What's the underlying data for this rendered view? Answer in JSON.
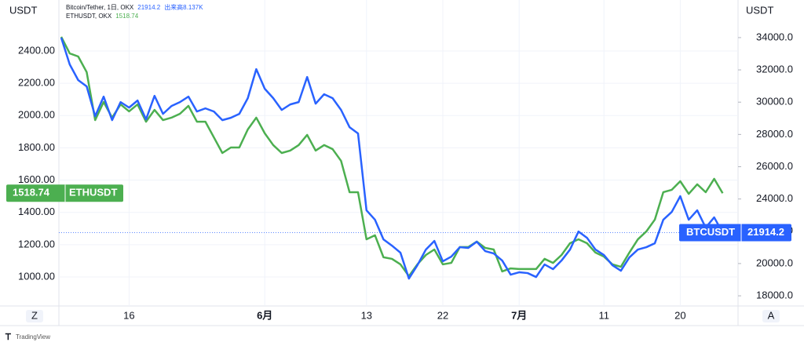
{
  "chart_data": {
    "type": "line",
    "title": "Bitcoin/Tether, 1日, OKX",
    "volume_label": "出来高8.137K",
    "subtitle": "ETHUSDT, OKX",
    "ylabel": "USDT",
    "y2label": "USDT",
    "categories": [
      null,
      null,
      null,
      null,
      null,
      null,
      null,
      null,
      "16",
      null,
      null,
      null,
      null,
      null,
      null,
      null,
      null,
      null,
      null,
      null,
      null,
      null,
      null,
      null,
      "6月",
      null,
      null,
      null,
      null,
      null,
      null,
      null,
      null,
      null,
      null,
      null,
      "13",
      null,
      null,
      null,
      null,
      null,
      null,
      null,
      null,
      "22",
      null,
      null,
      null,
      null,
      null,
      null,
      null,
      null,
      "7月",
      null,
      null,
      null,
      null,
      null,
      null,
      null,
      null,
      null,
      "11",
      null,
      null,
      null,
      null,
      null,
      null,
      null,
      null,
      "20",
      null,
      null,
      null,
      null,
      null
    ],
    "series": [
      {
        "name": "ETHUSDT",
        "color": "#4caf50",
        "axis": "y",
        "values": [
          2488,
          2385,
          2366,
          2269,
          1972,
          2084,
          1987,
          2069,
          2026,
          2069,
          1962,
          2035,
          1972,
          1987,
          2011,
          2060,
          1962,
          1962,
          1865,
          1768,
          1802,
          1802,
          1914,
          1987,
          1890,
          1817,
          1768,
          1783,
          1817,
          1880,
          1783,
          1817,
          1792,
          1719,
          1525,
          1525,
          1233,
          1258,
          1122,
          1112,
          1078,
          1005,
          1078,
          1136,
          1170,
          1078,
          1087,
          1185,
          1185,
          1219,
          1180,
          1170,
          1034,
          1053,
          1049,
          1049,
          1049,
          1112,
          1087,
          1136,
          1209,
          1233,
          1209,
          1151,
          1126,
          1078,
          1063,
          1151,
          1233,
          1282,
          1355,
          1525,
          1540,
          1593,
          1515,
          1574,
          1525,
          1608,
          1518.74
        ]
      },
      {
        "name": "BTCUSDT",
        "color": "#2962ff",
        "axis": "y2",
        "values": [
          33990,
          32337,
          31365,
          30976,
          29129,
          30344,
          28886,
          30004,
          29664,
          30101,
          28935,
          30393,
          29275,
          29761,
          30004,
          30344,
          29421,
          29615,
          29421,
          28886,
          29032,
          29275,
          30247,
          32045,
          30830,
          30247,
          29518,
          29858,
          30004,
          31559,
          29907,
          30490,
          30247,
          29518,
          28449,
          28060,
          23297,
          22714,
          21499,
          21110,
          20673,
          19069,
          19895,
          20867,
          21402,
          20138,
          20430,
          21013,
          20965,
          21353,
          20770,
          20624,
          20187,
          19312,
          19458,
          19409,
          19166,
          19944,
          19652,
          20187,
          20867,
          21985,
          21596,
          20867,
          20527,
          19895,
          19555,
          20381,
          20867,
          21013,
          21256,
          22714,
          23200,
          24172,
          22714,
          23297,
          22228,
          22860,
          21914.2
        ]
      }
    ],
    "ylim": [
      820,
      2716
    ],
    "yticks": [
      {
        "value": 1000,
        "label": "1000.00"
      },
      {
        "value": 1200,
        "label": "1200.00"
      },
      {
        "value": 1400,
        "label": "1400.00"
      },
      {
        "value": 1600,
        "label": "1600.00"
      },
      {
        "value": 1800,
        "label": "1800.00"
      },
      {
        "value": 2000,
        "label": "2000.00"
      },
      {
        "value": 2200,
        "label": "2200.00"
      },
      {
        "value": 2400,
        "label": "2400.00"
      }
    ],
    "y2lim": [
      17370,
      36330
    ],
    "y2ticks": [
      {
        "value": 18000,
        "label": "18000.0"
      },
      {
        "value": 20000,
        "label": "20000.0"
      },
      {
        "value": 22000,
        "label": "22000.0"
      },
      {
        "value": 24000,
        "label": "24000.0"
      },
      {
        "value": 26000,
        "label": "26000.0"
      },
      {
        "value": 28000,
        "label": "28000.0"
      },
      {
        "value": 30000,
        "label": "30000.0"
      },
      {
        "value": 32000,
        "label": "32000.0"
      },
      {
        "value": 34000,
        "label": "34000.0"
      }
    ],
    "grid": true
  },
  "ui": {
    "buttons": [
      "Z",
      "A"
    ],
    "brand": "TradingView"
  }
}
